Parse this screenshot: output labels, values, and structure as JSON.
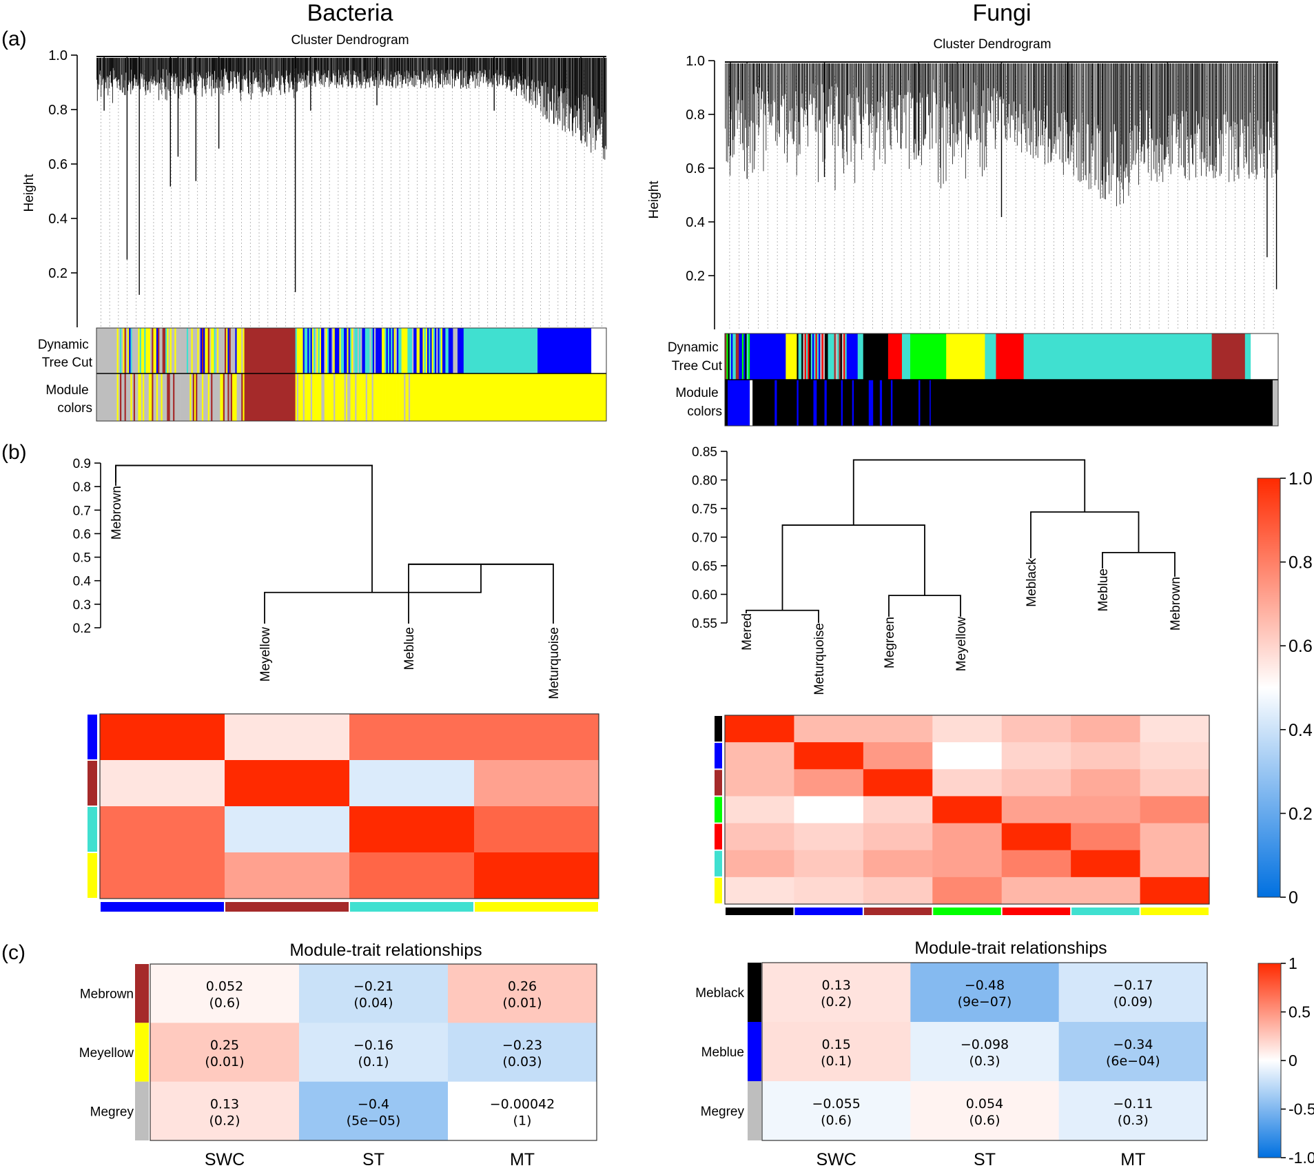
{
  "figure": {
    "panel_labels": [
      "(a)",
      "(b)",
      "(c)"
    ],
    "bacteria_title": "Bacteria",
    "fungi_title": "Fungi"
  },
  "colors": {
    "grey": "#bebebe",
    "brown": "#a52a2a",
    "yellow": "#ffff00",
    "blue": "#0000ff",
    "turquoise": "#40e0d0",
    "black": "#000000",
    "red": "#ff0000",
    "green": "#00ff00",
    "scale_low": "#0070e0",
    "scale_high": "#ff2a00"
  },
  "chart_data": [
    {
      "id": "bacteria_dendro",
      "type": "dendrogram",
      "title": "Cluster Dendrogram",
      "ylabel": "Height",
      "ylim": [
        0,
        1.0
      ],
      "yticks": [
        0.2,
        0.4,
        0.6,
        0.8,
        1.0
      ],
      "tick_labels": [
        "0.2",
        "0.4",
        "0.6",
        "0.8",
        "1.0"
      ],
      "row_labels": [
        "Dynamic Tree Cut",
        "Module colors"
      ],
      "row_label_lines": [
        [
          "Dynamic",
          "Tree Cut"
        ],
        [
          "Module",
          "colors"
        ]
      ],
      "dynamic_segments": [
        [
          "grey",
          0.04
        ],
        [
          "mixed",
          0.25
        ],
        [
          "brown",
          0.1
        ],
        [
          "mixed2",
          0.33
        ],
        [
          "turquoise",
          0.145
        ],
        [
          "blue",
          0.105
        ]
      ],
      "module_segments": [
        [
          "grey",
          0.04
        ],
        [
          "mixed3",
          0.25
        ],
        [
          "brown",
          0.1
        ],
        [
          "mixed4",
          0.24
        ],
        [
          "yellow",
          0.37
        ]
      ]
    },
    {
      "id": "fungi_dendro",
      "type": "dendrogram",
      "title": "Cluster Dendrogram",
      "ylabel": "Height",
      "ylim": [
        0,
        1.0
      ],
      "yticks": [
        0.2,
        0.4,
        0.6,
        0.8,
        1.0
      ],
      "tick_labels": [
        "0.2",
        "0.4",
        "0.6",
        "0.8",
        "1.0"
      ],
      "row_labels": [
        "Dynamic Tree Cut",
        "Module colors"
      ],
      "row_label_lines": [
        [
          "Dynamic",
          "Tree Cut"
        ],
        [
          "Module",
          "colors"
        ]
      ],
      "dynamic_segments": [
        [
          "mixed5",
          0.045
        ],
        [
          "blue",
          0.065
        ],
        [
          "yellow",
          0.02
        ],
        [
          "mixed6",
          0.09
        ],
        [
          "blue",
          0.02
        ],
        [
          "turquoise",
          0.01
        ],
        [
          "black",
          0.045
        ],
        [
          "red",
          0.025
        ],
        [
          "turquoise",
          0.015
        ],
        [
          "green",
          0.065
        ],
        [
          "yellow",
          0.07
        ],
        [
          "turquoise",
          0.02
        ],
        [
          "red",
          0.05
        ],
        [
          "turquoise",
          0.34
        ],
        [
          "brown",
          0.06
        ],
        [
          "turquoise",
          0.01
        ]
      ],
      "module_segments": [
        [
          "black",
          0.99
        ],
        [
          "grey",
          0.01
        ]
      ]
    },
    {
      "id": "bacteria_eigengene_dendro",
      "type": "dendrogram",
      "yticks": [
        0.2,
        0.3,
        0.4,
        0.5,
        0.6,
        0.7,
        0.8,
        0.9
      ],
      "tick_labels": [
        "0.2",
        "0.3",
        "0.4",
        "0.5",
        "0.6",
        "0.7",
        "0.8",
        "0.9"
      ],
      "leaves": [
        "Mebrown",
        "Meyellow",
        "Meblue",
        "Meturquoise"
      ],
      "merges": [
        [
          "Meblue",
          "Meturquoise",
          0.47
        ],
        [
          "Meyellow",
          "Meblue+Meturquoise",
          0.35
        ],
        [
          "Mebrown",
          "rest",
          0.89
        ]
      ]
    },
    {
      "id": "fungi_eigengene_dendro",
      "type": "dendrogram",
      "yticks": [
        0.55,
        0.6,
        0.65,
        0.7,
        0.75,
        0.8,
        0.85
      ],
      "tick_labels": [
        "0.55",
        "0.60",
        "0.65",
        "0.70",
        "0.75",
        "0.80",
        "0.85"
      ],
      "leaves": [
        "Mered",
        "Meturquoise",
        "Megreen",
        "Meyellow",
        "Meblack",
        "Meblue",
        "Mebrown"
      ],
      "merges": [
        [
          "Mered",
          "Meturquoise",
          0.572
        ],
        [
          "Megreen",
          "Meyellow",
          0.598
        ],
        [
          "Meblue",
          "Mebrown",
          0.673
        ],
        [
          "Meblack",
          "Meblue+Mebrown",
          0.744
        ],
        [
          "left4",
          "",
          0.721
        ],
        [
          "all",
          "",
          0.835
        ]
      ]
    },
    {
      "id": "bacteria_eigengene_adjacency",
      "type": "heatmap",
      "modules": [
        "blue",
        "brown",
        "turquoise",
        "yellow"
      ],
      "values": [
        [
          1.0,
          0.56,
          0.84,
          0.84
        ],
        [
          0.56,
          1.0,
          0.43,
          0.72
        ],
        [
          0.84,
          0.43,
          1.0,
          0.86
        ],
        [
          0.84,
          0.72,
          0.86,
          1.0
        ]
      ]
    },
    {
      "id": "fungi_eigengene_adjacency",
      "type": "heatmap",
      "modules": [
        "black",
        "blue",
        "brown",
        "green",
        "red",
        "turquoise",
        "yellow"
      ],
      "values": [
        [
          1.0,
          0.66,
          0.66,
          0.58,
          0.64,
          0.68,
          0.57
        ],
        [
          0.66,
          1.0,
          0.74,
          0.5,
          0.6,
          0.63,
          0.59
        ],
        [
          0.66,
          0.74,
          1.0,
          0.6,
          0.64,
          0.7,
          0.62
        ],
        [
          0.58,
          0.5,
          0.6,
          1.0,
          0.72,
          0.72,
          0.78
        ],
        [
          0.64,
          0.6,
          0.64,
          0.72,
          1.0,
          0.8,
          0.67
        ],
        [
          0.68,
          0.63,
          0.7,
          0.72,
          0.8,
          1.0,
          0.67
        ],
        [
          0.57,
          0.59,
          0.62,
          0.78,
          0.67,
          0.67,
          1.0
        ]
      ]
    },
    {
      "id": "bacteria_module_trait",
      "type": "heatmap",
      "title": "Module-trait relationships",
      "rows": [
        "Mebrown",
        "Meyellow",
        "Megrey"
      ],
      "row_colors": [
        "brown",
        "yellow",
        "grey"
      ],
      "cols": [
        "SWC",
        "ST",
        "MT"
      ],
      "values": [
        [
          0.052,
          -0.21,
          0.26
        ],
        [
          0.25,
          -0.16,
          -0.23
        ],
        [
          0.13,
          -0.4,
          -0.00042
        ]
      ],
      "cell_text": [
        [
          [
            "0.052",
            "(0.6)"
          ],
          [
            "−0.21",
            "(0.04)"
          ],
          [
            "0.26",
            "(0.01)"
          ]
        ],
        [
          [
            "0.25",
            "(0.01)"
          ],
          [
            "−0.16",
            "(0.1)"
          ],
          [
            "−0.23",
            "(0.03)"
          ]
        ],
        [
          [
            "0.13",
            "(0.2)"
          ],
          [
            "−0.4",
            "(5e−05)"
          ],
          [
            "−0.00042",
            "(1)"
          ]
        ]
      ]
    },
    {
      "id": "fungi_module_trait",
      "type": "heatmap",
      "title": "Module-trait relationships",
      "rows": [
        "Meblack",
        "Meblue",
        "Megrey"
      ],
      "row_colors": [
        "black",
        "blue",
        "grey"
      ],
      "cols": [
        "SWC",
        "ST",
        "MT"
      ],
      "values": [
        [
          0.13,
          -0.48,
          -0.17
        ],
        [
          0.15,
          -0.098,
          -0.34
        ],
        [
          -0.055,
          0.054,
          -0.11
        ]
      ],
      "cell_text": [
        [
          [
            "0.13",
            "(0.2)"
          ],
          [
            "−0.48",
            "(9e−07)"
          ],
          [
            "−0.17",
            "(0.09)"
          ]
        ],
        [
          [
            "0.15",
            "(0.1)"
          ],
          [
            "−0.098",
            "(0.3)"
          ],
          [
            "−0.34",
            "(6e−04)"
          ]
        ],
        [
          [
            "−0.055",
            "(0.6)"
          ],
          [
            "0.054",
            "(0.6)"
          ],
          [
            "−0.11",
            "(0.3)"
          ]
        ]
      ]
    },
    {
      "id": "adjacency_colorbar",
      "type": "colorbar",
      "range": [
        0,
        1.0
      ],
      "tick_labels": [
        "0",
        "0.2",
        "0.4",
        "0.6",
        "0.8",
        "1.0"
      ]
    },
    {
      "id": "trait_colorbar",
      "type": "colorbar",
      "range": [
        -1.0,
        1.0
      ],
      "tick_labels": [
        "-1.0",
        "-0.5",
        "0",
        "0.5",
        "1"
      ]
    }
  ]
}
